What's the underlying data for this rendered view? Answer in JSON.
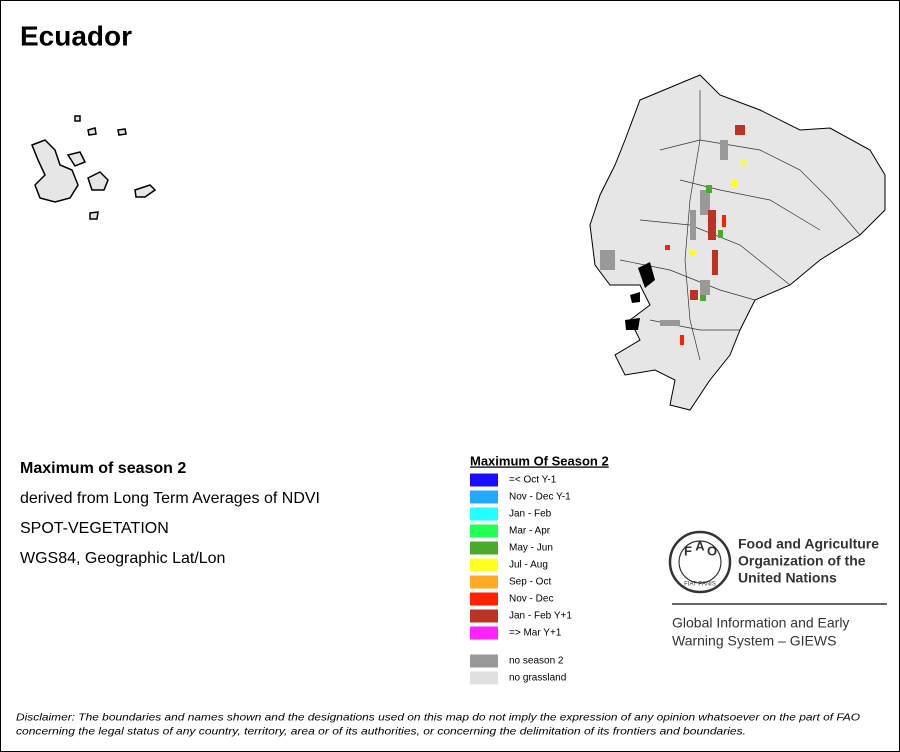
{
  "title": "Ecuador",
  "description": [
    "Maximum of season 2",
    "derived from Long Term Averages of NDVI",
    "SPOT-VEGETATION",
    "WGS84, Geographic Lat/Lon"
  ],
  "legend": {
    "title": "Maximum Of Season 2",
    "items": [
      {
        "label": "=< Oct Y-1",
        "color": "#1a0dff"
      },
      {
        "label": "Nov - Dec Y-1",
        "color": "#22a8ff"
      },
      {
        "label": "Jan - Feb",
        "color": "#22ffff"
      },
      {
        "label": "Mar - Apr",
        "color": "#22ff55"
      },
      {
        "label": "May - Jun",
        "color": "#4aaa2a"
      },
      {
        "label": "Jul - Aug",
        "color": "#ffff22"
      },
      {
        "label": "Sep - Oct",
        "color": "#ffaa22"
      },
      {
        "label": "Nov - Dec",
        "color": "#ff2200"
      },
      {
        "label": "Jan - Feb Y+1",
        "color": "#bb3322"
      },
      {
        "label": "=> Mar Y+1",
        "color": "#ff22ff"
      }
    ],
    "extra_items": [
      {
        "label": "no season 2",
        "color": "#999999"
      },
      {
        "label": "no grassland",
        "color": "#e0e0e0"
      }
    ]
  },
  "logo": {
    "emblem": [
      "F",
      "A",
      "O",
      "FIAT PANIS"
    ],
    "org": [
      "Food and Agriculture",
      "Organization of the",
      "United Nations"
    ]
  },
  "giews": [
    "Global Information and Early",
    "Warning System – GIEWS"
  ],
  "disclaimer": [
    "Disclaimer: The boundaries and names shown and the designations used on this map do not imply the expression of any opinion whatsoever on the part of FAO",
    "concerning the legal status of any country, territory, area or of its authorities, or concerning the delimitation of its frontiers and boundaries."
  ]
}
